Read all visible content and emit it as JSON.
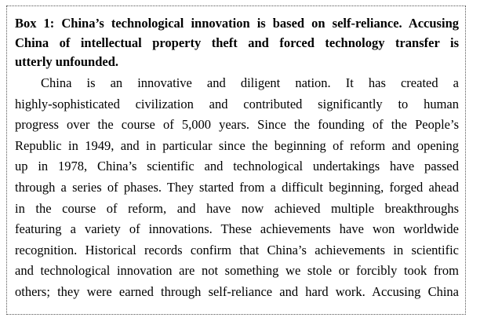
{
  "box": {
    "title_lines": [
      "Box 1: China’s technological innovation is based on self-reliance. Accusing",
      "China of intellectual property theft and forced technology transfer is",
      "utterly unfounded."
    ],
    "body_lines": [
      "China is an innovative and diligent nation. It has created a",
      "highly-sophisticated civilization and contributed significantly to human",
      "progress over the course of 5,000 years. Since the founding of the People’s",
      "Republic in 1949, and in particular since the beginning of reform and opening",
      "up in 1978, China’s scientific and technological undertakings have passed",
      "through a series of phases. They started from a difficult beginning, forged ahead",
      "in the course of reform, and have now achieved multiple breakthroughs",
      "featuring a variety of innovations. These achievements have won worldwide",
      "recognition. Historical records confirm that China’s achievements in scientific",
      "and technological innovation are not something we stole or forcibly took from",
      "others; they were earned through self-reliance and hard work. Accusing China"
    ]
  }
}
